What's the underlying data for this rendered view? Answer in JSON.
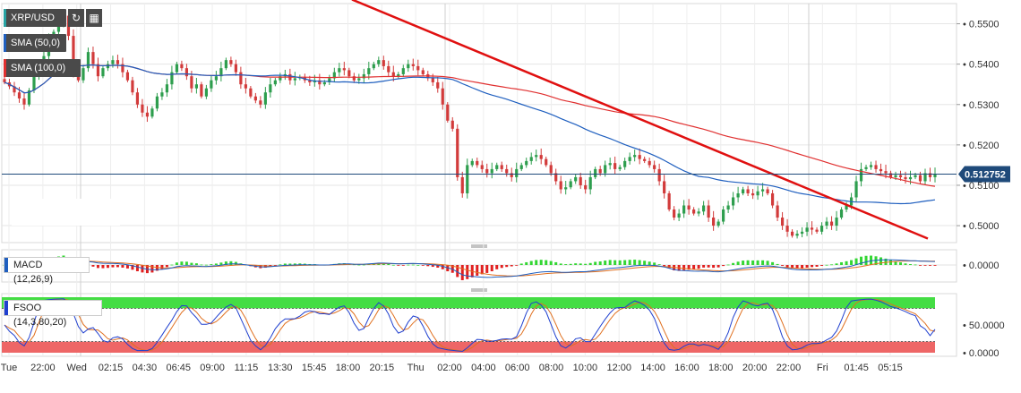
{
  "chart_data": {
    "type": "candlestick",
    "symbol": "XRP/USD",
    "indicators": [
      {
        "name": "SMA (50,0)",
        "color": "#1f5fbf"
      },
      {
        "name": "SMA (100,0)",
        "color": "#e03030"
      }
    ],
    "price_axis": {
      "ticks": [
        "0.5500",
        "0.5400",
        "0.5300",
        "0.5200",
        "0.5100",
        "0.5000"
      ],
      "range": [
        0.4958,
        0.555
      ]
    },
    "current_price": {
      "label": "0.512752",
      "value": 0.512752
    },
    "time_axis": [
      "Tue",
      "22:00",
      "Wed",
      "02:15",
      "04:30",
      "06:45",
      "09:00",
      "11:15",
      "13:30",
      "15:45",
      "18:00",
      "20:15",
      "Thu",
      "02:00",
      "04:00",
      "06:00",
      "08:00",
      "10:00",
      "12:00",
      "14:00",
      "16:00",
      "18:00",
      "20:00",
      "22:00",
      "Fri",
      "01:45",
      "05:15"
    ],
    "candles_close": [
      0.5355,
      0.5345,
      0.533,
      0.5315,
      0.53,
      0.5335,
      0.537,
      0.54,
      0.542,
      0.546,
      0.548,
      0.55,
      0.552,
      0.547,
      0.538,
      0.536,
      0.539,
      0.543,
      0.54,
      0.537,
      0.539,
      0.54,
      0.541,
      0.54,
      0.538,
      0.536,
      0.533,
      0.53,
      0.528,
      0.527,
      0.529,
      0.532,
      0.533,
      0.535,
      0.538,
      0.54,
      0.539,
      0.537,
      0.534,
      0.535,
      0.532,
      0.534,
      0.536,
      0.537,
      0.539,
      0.541,
      0.54,
      0.538,
      0.535,
      0.534,
      0.532,
      0.531,
      0.53,
      0.533,
      0.535,
      0.536,
      0.537,
      0.5375,
      0.536,
      0.5365,
      0.5368,
      0.536,
      0.5355,
      0.536,
      0.535,
      0.5355,
      0.5365,
      0.538,
      0.539,
      0.5385,
      0.537,
      0.536,
      0.5365,
      0.5375,
      0.539,
      0.54,
      0.541,
      0.5395,
      0.538,
      0.537,
      0.5375,
      0.539,
      0.54,
      0.5395,
      0.5385,
      0.5375,
      0.5365,
      0.5355,
      0.534,
      0.53,
      0.526,
      0.524,
      0.512,
      0.508,
      0.515,
      0.516,
      0.515,
      0.514,
      0.513,
      0.514,
      0.515,
      0.514,
      0.513,
      0.512,
      0.514,
      0.515,
      0.516,
      0.517,
      0.5175,
      0.5165,
      0.515,
      0.513,
      0.511,
      0.509,
      0.5095,
      0.511,
      0.512,
      0.51,
      0.509,
      0.512,
      0.514,
      0.513,
      0.515,
      0.5155,
      0.514,
      0.5145,
      0.516,
      0.517,
      0.5175,
      0.5165,
      0.516,
      0.515,
      0.514,
      0.511,
      0.508,
      0.504,
      0.502,
      0.503,
      0.505,
      0.504,
      0.503,
      0.5035,
      0.505,
      0.502,
      0.5,
      0.501,
      0.504,
      0.505,
      0.507,
      0.508,
      0.509,
      0.508,
      0.5075,
      0.5085,
      0.509,
      0.508,
      0.505,
      0.502,
      0.5,
      0.4985,
      0.4975,
      0.498,
      0.4985,
      0.4995,
      0.499,
      0.4985,
      0.5,
      0.501,
      0.5,
      0.502,
      0.504,
      0.505,
      0.507,
      0.511,
      0.514,
      0.5145,
      0.515,
      0.514,
      0.5135,
      0.513,
      0.512,
      0.5125,
      0.512,
      0.5115,
      0.512,
      0.5125,
      0.511,
      0.513,
      0.512,
      0.5128
    ],
    "trendline": {
      "color": "#e01010",
      "from": 0.556,
      "to": 0.4968
    },
    "panels": [
      {
        "name": "MACD (12,26,9)",
        "ticks": [
          "0.0000"
        ],
        "colors": {
          "macd": "#1f5fbf",
          "signal": "#e07020",
          "hist_pos": "#33d633",
          "hist_neg": "#e02020"
        }
      },
      {
        "name": "FSOO (14,3,80,20)",
        "ticks": [
          "50.0000",
          "0.0000"
        ],
        "levels": [
          80,
          20
        ],
        "colors": {
          "k": "#1f3fcf",
          "d": "#e07020",
          "overbought": "#44dd44",
          "oversold": "#ee6666"
        }
      }
    ]
  }
}
